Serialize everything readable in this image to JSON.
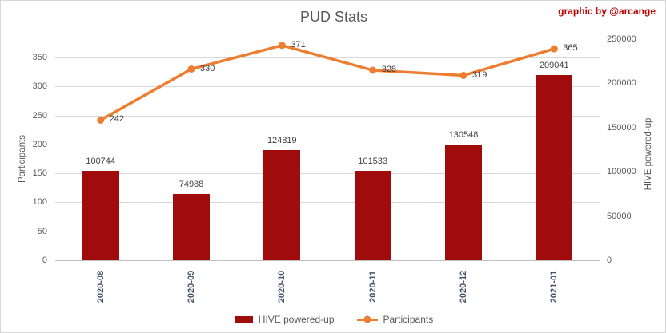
{
  "attribution": "graphic by @arcange",
  "chart_data": {
    "type": "combo-bar-line",
    "title": "PUD Stats",
    "categories": [
      "2020-08",
      "2020-09",
      "2020-10",
      "2020-11",
      "2020-12",
      "2021-01"
    ],
    "series": [
      {
        "name": "HIVE powered-up",
        "type": "bar",
        "axis": "right",
        "color": "#a00c0c",
        "values": [
          100744,
          74988,
          124819,
          101533,
          130548,
          209041
        ]
      },
      {
        "name": "Participants",
        "type": "line",
        "axis": "left",
        "color": "#ed7d31",
        "values": [
          242,
          330,
          371,
          328,
          319,
          365
        ]
      }
    ],
    "left_axis": {
      "title": "Participants",
      "min": 0,
      "max": 350,
      "step": 50
    },
    "right_axis": {
      "title": "HIVE powered-up",
      "min": 0,
      "max": 250000,
      "step": 50000
    },
    "legend_position": "bottom",
    "grid": true,
    "colors": {
      "gridline": "#d9d9d9",
      "axis_line": "#bfbfbf",
      "tick_text": "#595959",
      "category_text": "#44546a",
      "data_label_text": "#404040",
      "title_text": "#595959",
      "attribution_text": "#c00000"
    }
  }
}
